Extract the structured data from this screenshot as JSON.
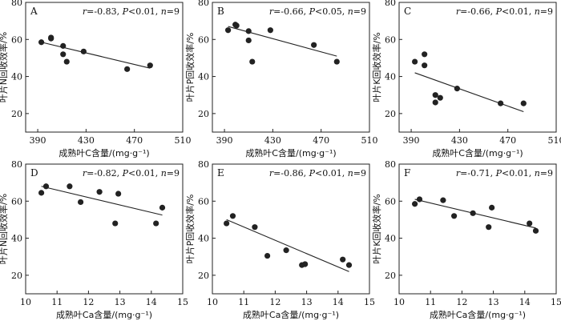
{
  "chart_data": [
    {
      "type": "scatter",
      "panel_label": "A",
      "stat_text": {
        "r": "-0.83",
        "p": "0.01",
        "p_sign": "<",
        "n": "9"
      },
      "xlabel": "成熟叶C含量/(mg·g⁻¹)",
      "ylabel": "叶片N回收效率/%",
      "xlim": [
        380,
        510
      ],
      "ylim": [
        10,
        80
      ],
      "xticks": [
        390,
        430,
        470,
        510
      ],
      "yticks": [
        20,
        40,
        60,
        80
      ],
      "x": [
        393,
        401,
        401,
        411,
        411,
        414,
        428,
        464,
        483
      ],
      "y": [
        58.5,
        61,
        60.5,
        56.5,
        52,
        48,
        53.5,
        44,
        46
      ],
      "fit": {
        "x": [
          393,
          483
        ],
        "y": [
          58.5,
          44.5
        ]
      }
    },
    {
      "type": "scatter",
      "panel_label": "B",
      "stat_text": {
        "r": "-0.66",
        "p": "0.05",
        "p_sign": "<",
        "n": "9"
      },
      "xlabel": "成熟叶C含量/(mg·g⁻¹)",
      "ylabel": "叶片P回收效率/%",
      "xlim": [
        380,
        510
      ],
      "ylim": [
        10,
        80
      ],
      "xticks": [
        390,
        430,
        470,
        510
      ],
      "yticks": [
        20,
        40,
        60,
        80
      ],
      "x": [
        393,
        399,
        400,
        410,
        410,
        413,
        428,
        464,
        483
      ],
      "y": [
        65,
        68,
        67.5,
        64.5,
        59.5,
        48,
        65,
        57,
        48
      ],
      "fit": {
        "x": [
          393,
          483
        ],
        "y": [
          67,
          51
        ]
      }
    },
    {
      "type": "scatter",
      "panel_label": "C",
      "stat_text": {
        "r": "-0.66",
        "p": "0.01",
        "p_sign": "<",
        "n": "9"
      },
      "xlabel": "成熟叶C含量/(mg·g⁻¹)",
      "ylabel": "叶片K回收效率/%",
      "xlim": [
        380,
        510
      ],
      "ylim": [
        10,
        80
      ],
      "xticks": [
        390,
        430,
        470,
        510
      ],
      "yticks": [
        20,
        40,
        60,
        80
      ],
      "x": [
        393,
        401,
        401,
        410,
        410,
        414,
        428,
        464,
        483
      ],
      "y": [
        48,
        52,
        46,
        30,
        26,
        28.5,
        33.5,
        25.5,
        25.5
      ],
      "fit": {
        "x": [
          393,
          483
        ],
        "y": [
          42,
          21
        ]
      }
    },
    {
      "type": "scatter",
      "panel_label": "D",
      "stat_text": {
        "r": "-0.82",
        "p": "0.01",
        "p_sign": "<",
        "n": "9"
      },
      "xlabel": "成熟叶Ca含量/(mg·g⁻¹)",
      "ylabel": "叶片N回收效率/%",
      "xlim": [
        10,
        15
      ],
      "ylim": [
        10,
        80
      ],
      "xticks": [
        10,
        11,
        12,
        13,
        14,
        15
      ],
      "yticks": [
        20,
        40,
        60,
        80
      ],
      "x": [
        10.5,
        10.65,
        11.4,
        11.75,
        12.35,
        12.85,
        12.95,
        14.15,
        14.35
      ],
      "y": [
        64.5,
        68,
        68,
        59.5,
        65,
        48,
        64,
        48,
        56.5
      ],
      "fit": {
        "x": [
          10.5,
          14.35
        ],
        "y": [
          68,
          52.5
        ]
      }
    },
    {
      "type": "scatter",
      "panel_label": "E",
      "stat_text": {
        "r": "-0.86",
        "p": "0.01",
        "p_sign": "<",
        "n": "9"
      },
      "xlabel": "成熟叶Ca含量/(mg·g⁻¹)",
      "ylabel": "叶片P回收效率/%",
      "xlim": [
        10,
        15
      ],
      "ylim": [
        10,
        80
      ],
      "xticks": [
        10,
        11,
        12,
        13,
        14,
        15
      ],
      "yticks": [
        20,
        40,
        60,
        80
      ],
      "x": [
        10.45,
        10.65,
        11.35,
        11.75,
        12.35,
        12.85,
        12.95,
        14.15,
        14.35
      ],
      "y": [
        48,
        52,
        46,
        30.5,
        33.5,
        25.5,
        26,
        28.5,
        25.5
      ],
      "fit": {
        "x": [
          10.45,
          14.35
        ],
        "y": [
          50,
          22
        ]
      }
    },
    {
      "type": "scatter",
      "panel_label": "F",
      "stat_text": {
        "r": "-0.71",
        "p": "0.01",
        "p_sign": "<",
        "n": "9"
      },
      "xlabel": "成熟叶Ca含量/(mg·g⁻¹)",
      "ylabel": "叶片K回收效率/%",
      "xlim": [
        10,
        15
      ],
      "ylim": [
        10,
        80
      ],
      "xticks": [
        10,
        11,
        12,
        13,
        14,
        15
      ],
      "yticks": [
        20,
        40,
        60,
        80
      ],
      "x": [
        10.5,
        10.65,
        11.4,
        11.75,
        12.35,
        12.85,
        12.95,
        14.15,
        14.35
      ],
      "y": [
        58.5,
        61,
        60.5,
        52,
        53.5,
        46,
        56.5,
        48,
        44
      ],
      "fit": {
        "x": [
          10.5,
          14.35
        ],
        "y": [
          61,
          45.5
        ]
      }
    }
  ]
}
